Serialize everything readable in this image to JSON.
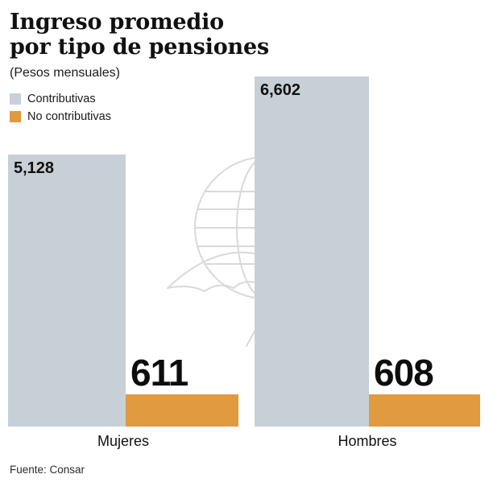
{
  "header": {
    "title_line1": "Ingreso promedio",
    "title_line2": "por tipo de pensiones",
    "subtitle": "(Pesos mensuales)"
  },
  "chart_data": {
    "type": "bar",
    "title": "Ingreso promedio por tipo de pensiones",
    "subtitle": "(Pesos mensuales)",
    "categories": [
      "Mujeres",
      "Hombres"
    ],
    "series": [
      {
        "name": "Contributivas",
        "values": [
          5128,
          6602
        ],
        "labels": [
          "5,128",
          "6,602"
        ],
        "color": "#c7d0d7"
      },
      {
        "name": "No contributivas",
        "values": [
          611,
          608
        ],
        "labels": [
          "611",
          "608"
        ],
        "color": "#e09a40"
      }
    ],
    "xlabel": "",
    "ylabel": "",
    "ylim": [
      0,
      6602
    ],
    "grid": false,
    "legend_position": "top-left"
  },
  "footer": {
    "source": "Fuente: Consar"
  },
  "watermark": {
    "name": "eagle-globe"
  }
}
